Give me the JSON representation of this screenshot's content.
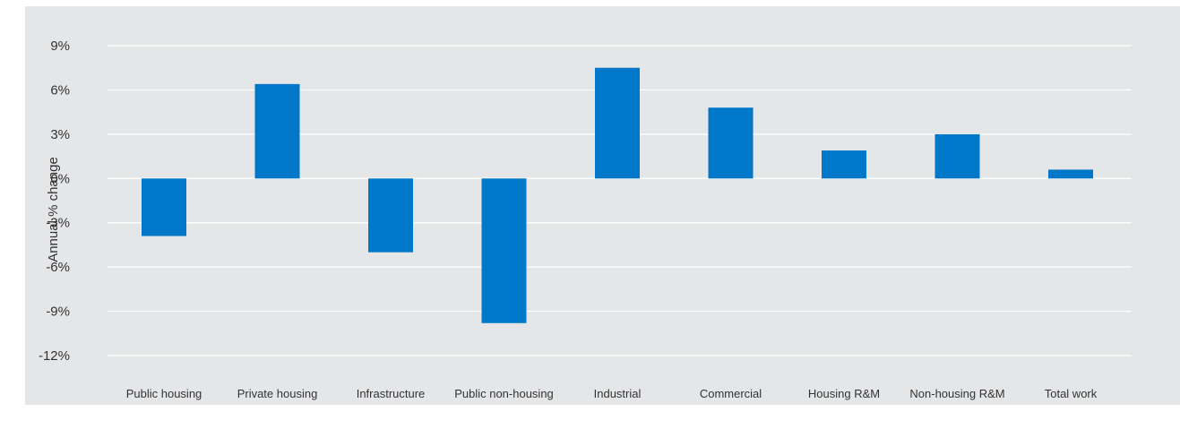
{
  "chart_data": {
    "type": "bar",
    "title": "",
    "xlabel": "",
    "ylabel": "Annual % change",
    "categories": [
      "Public housing",
      "Private housing",
      "Infrastructure",
      "Public non-housing",
      "Industrial",
      "Commercial",
      "Housing R&M",
      "Non-housing R&M",
      "Total work"
    ],
    "values": [
      -3.9,
      6.4,
      -5.0,
      -9.8,
      7.5,
      4.8,
      1.9,
      3.0,
      0.6
    ],
    "ylim": [
      -12,
      9
    ],
    "yticks": [
      9,
      6,
      3,
      0,
      -3,
      -6,
      -9,
      -12
    ],
    "ytick_labels": [
      "9%",
      "6%",
      "3%",
      "0%",
      "-3%",
      "-6%",
      "-9%",
      "-12%"
    ],
    "grid": true,
    "legend": "none",
    "colors": {
      "bar": "#0077c8",
      "background": "#e5e6e8",
      "grid": "#ffffff",
      "text": "#333333"
    }
  }
}
